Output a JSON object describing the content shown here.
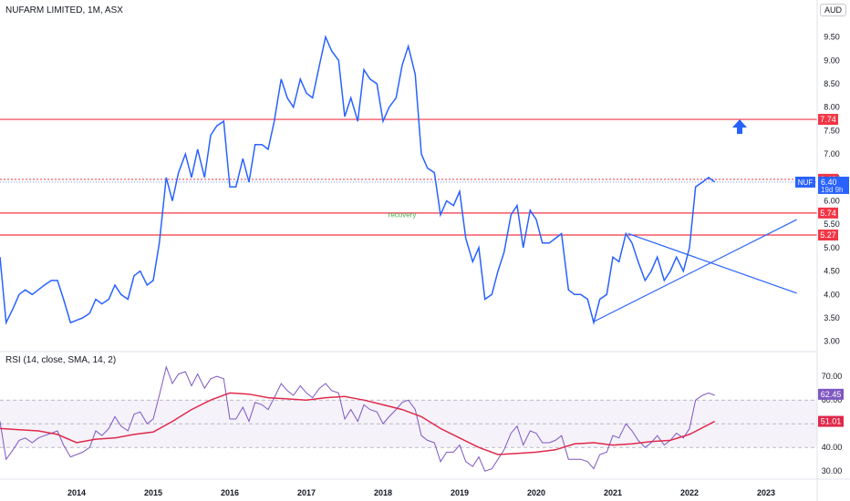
{
  "header": {
    "title": "NUFARM LIMITED, 1M, ASX",
    "currency": "AUD"
  },
  "annotation": {
    "recovery_text": "recovery"
  },
  "colors": {
    "price_line": "#2962ff",
    "level_line": "#f23645",
    "rsi_line": "#7e57c2",
    "rsi_ma": "#e0294a",
    "arrow": "#2962ff",
    "recovery_text": "#4caf50"
  },
  "chart_data": [
    {
      "type": "line",
      "title": "NUFARM LIMITED, 1M, ASX",
      "x_ticks": [
        "2014",
        "2015",
        "2016",
        "2017",
        "2018",
        "2019",
        "2020",
        "2021",
        "2022",
        "2023"
      ],
      "y_ticks": [
        "3.00",
        "3.50",
        "4.00",
        "4.50",
        "5.00",
        "5.50",
        "6.00",
        "6.50",
        "7.00",
        "7.50",
        "8.00",
        "8.50",
        "9.00",
        "9.50"
      ],
      "ylim": [
        2.8,
        9.9
      ],
      "xlim": [
        2013.0,
        2023.4
      ],
      "series": [
        {
          "name": "NUF",
          "x": [
            2013.0,
            2013.08,
            2013.17,
            2013.25,
            2013.33,
            2013.42,
            2013.5,
            2013.58,
            2013.67,
            2013.75,
            2013.83,
            2013.92,
            2014.0,
            2014.08,
            2014.17,
            2014.25,
            2014.33,
            2014.42,
            2014.5,
            2014.58,
            2014.67,
            2014.75,
            2014.83,
            2014.92,
            2015.0,
            2015.08,
            2015.17,
            2015.25,
            2015.33,
            2015.42,
            2015.5,
            2015.58,
            2015.67,
            2015.75,
            2015.83,
            2015.92,
            2016.0,
            2016.08,
            2016.17,
            2016.25,
            2016.33,
            2016.42,
            2016.5,
            2016.58,
            2016.67,
            2016.75,
            2016.83,
            2016.92,
            2017.0,
            2017.08,
            2017.17,
            2017.25,
            2017.33,
            2017.42,
            2017.5,
            2017.58,
            2017.67,
            2017.75,
            2017.83,
            2017.92,
            2018.0,
            2018.08,
            2018.17,
            2018.25,
            2018.33,
            2018.42,
            2018.5,
            2018.58,
            2018.67,
            2018.75,
            2018.83,
            2018.92,
            2019.0,
            2019.08,
            2019.17,
            2019.25,
            2019.33,
            2019.42,
            2019.5,
            2019.58,
            2019.67,
            2019.75,
            2019.83,
            2019.92,
            2020.0,
            2020.08,
            2020.17,
            2020.25,
            2020.33,
            2020.42,
            2020.5,
            2020.58,
            2020.67,
            2020.75,
            2020.83,
            2020.92,
            2021.0,
            2021.08,
            2021.17,
            2021.25,
            2021.33,
            2021.42,
            2021.5,
            2021.58,
            2021.67,
            2021.75,
            2021.83,
            2021.92,
            2022.0,
            2022.08,
            2022.17,
            2022.25,
            2022.33
          ],
          "values": [
            4.8,
            3.4,
            3.7,
            4.0,
            4.1,
            4.0,
            4.1,
            4.2,
            4.3,
            4.3,
            3.9,
            3.4,
            3.45,
            3.5,
            3.6,
            3.9,
            3.8,
            3.9,
            4.2,
            4.0,
            3.9,
            4.4,
            4.5,
            4.2,
            4.3,
            5.1,
            6.5,
            6.0,
            6.6,
            7.0,
            6.5,
            7.1,
            6.5,
            7.4,
            7.6,
            7.7,
            6.3,
            6.3,
            6.9,
            6.4,
            7.2,
            7.2,
            7.1,
            7.7,
            8.6,
            8.2,
            8.0,
            8.6,
            8.3,
            8.2,
            8.9,
            9.5,
            9.2,
            9.0,
            7.8,
            8.2,
            7.7,
            8.8,
            8.6,
            8.5,
            7.7,
            8.0,
            8.2,
            8.9,
            9.3,
            8.7,
            7.0,
            6.7,
            6.6,
            5.7,
            6.0,
            5.9,
            6.2,
            5.2,
            4.7,
            5.0,
            3.9,
            4.0,
            4.5,
            4.9,
            5.7,
            5.9,
            5.0,
            5.8,
            5.6,
            5.1,
            5.1,
            5.2,
            5.3,
            4.1,
            4.0,
            4.0,
            3.9,
            3.4,
            3.9,
            4.0,
            4.8,
            4.7,
            5.3,
            5.1,
            4.7,
            4.3,
            4.5,
            4.8,
            4.3,
            4.5,
            4.8,
            4.5,
            5.0,
            6.3,
            6.4,
            6.5,
            6.4
          ]
        }
      ],
      "levels": [
        {
          "label": "7.74",
          "value": 7.74
        },
        {
          "label": "6.46",
          "value": 6.46
        },
        {
          "label": "5.74",
          "value": 5.74
        },
        {
          "label": "5.27",
          "value": 5.27
        }
      ],
      "trendlines": [
        {
          "x": [
            2020.75,
            2023.4
          ],
          "values": [
            3.42,
            5.6
          ]
        },
        {
          "x": [
            2021.2,
            2023.4
          ],
          "values": [
            5.3,
            4.03
          ]
        }
      ],
      "price_label": {
        "name": "NUF",
        "value": "6.40",
        "countdown": "19d 9h"
      },
      "annotation_point": {
        "x": 2018.25,
        "value": 5.65
      }
    },
    {
      "type": "line",
      "title": "RSI (14, close, SMA, 14, 2)",
      "y_ticks": [
        "30.00",
        "40.00",
        "50.00",
        "60.00",
        "70.00"
      ],
      "ylim": [
        27,
        77
      ],
      "band": [
        40,
        60
      ],
      "midline": 50,
      "series": [
        {
          "name": "RSI",
          "x": [
            2013.0,
            2013.08,
            2013.17,
            2013.25,
            2013.33,
            2013.42,
            2013.5,
            2013.58,
            2013.67,
            2013.75,
            2013.83,
            2013.92,
            2014.0,
            2014.08,
            2014.17,
            2014.25,
            2014.33,
            2014.42,
            2014.5,
            2014.58,
            2014.67,
            2014.75,
            2014.83,
            2014.92,
            2015.0,
            2015.08,
            2015.17,
            2015.25,
            2015.33,
            2015.42,
            2015.5,
            2015.58,
            2015.67,
            2015.75,
            2015.83,
            2015.92,
            2016.0,
            2016.08,
            2016.17,
            2016.25,
            2016.33,
            2016.42,
            2016.5,
            2016.58,
            2016.67,
            2016.75,
            2016.83,
            2016.92,
            2017.0,
            2017.08,
            2017.17,
            2017.25,
            2017.33,
            2017.42,
            2017.5,
            2017.58,
            2017.67,
            2017.75,
            2017.83,
            2017.92,
            2018.0,
            2018.08,
            2018.17,
            2018.25,
            2018.33,
            2018.42,
            2018.5,
            2018.58,
            2018.67,
            2018.75,
            2018.83,
            2018.92,
            2019.0,
            2019.08,
            2019.17,
            2019.25,
            2019.33,
            2019.42,
            2019.5,
            2019.58,
            2019.67,
            2019.75,
            2019.83,
            2019.92,
            2020.0,
            2020.08,
            2020.17,
            2020.25,
            2020.33,
            2020.42,
            2020.5,
            2020.58,
            2020.67,
            2020.75,
            2020.83,
            2020.92,
            2021.0,
            2021.08,
            2021.17,
            2021.25,
            2021.33,
            2021.42,
            2021.5,
            2021.58,
            2021.67,
            2021.75,
            2021.83,
            2021.92,
            2022.0,
            2022.08,
            2022.17,
            2022.25,
            2022.33
          ],
          "values": [
            51,
            35,
            39,
            43,
            44,
            42,
            44,
            45,
            46,
            47,
            41,
            36,
            37,
            38,
            40,
            47,
            45,
            48,
            53,
            49,
            47,
            54,
            55,
            50,
            52,
            62,
            74,
            67,
            71,
            72,
            66,
            71,
            65,
            69,
            70,
            69,
            52,
            52,
            57,
            51,
            59,
            58,
            56,
            61,
            67,
            64,
            62,
            66,
            63,
            61,
            65,
            67,
            64,
            63,
            52,
            56,
            51,
            58,
            56,
            55,
            50,
            53,
            56,
            59,
            60,
            56,
            45,
            43,
            42,
            34,
            38,
            38,
            41,
            34,
            32,
            36,
            30,
            31,
            35,
            39,
            46,
            49,
            41,
            47,
            46,
            42,
            42,
            43,
            45,
            35,
            35,
            35,
            34,
            31,
            37,
            38,
            45,
            44,
            50,
            47,
            43,
            40,
            42,
            45,
            41,
            43,
            46,
            44,
            48,
            60,
            62,
            63,
            62
          ]
        },
        {
          "name": "RSI MA",
          "x": [
            2013.0,
            2013.25,
            2013.5,
            2013.75,
            2014.0,
            2014.25,
            2014.5,
            2014.75,
            2015.0,
            2015.25,
            2015.5,
            2015.75,
            2016.0,
            2016.25,
            2016.5,
            2016.75,
            2017.0,
            2017.25,
            2017.5,
            2017.75,
            2018.0,
            2018.25,
            2018.5,
            2018.75,
            2019.0,
            2019.25,
            2019.5,
            2019.75,
            2020.0,
            2020.25,
            2020.5,
            2020.75,
            2021.0,
            2021.25,
            2021.5,
            2021.75,
            2022.0,
            2022.33
          ],
          "values": [
            48,
            47.5,
            47,
            45.5,
            42,
            43.5,
            44,
            45.5,
            46.5,
            51,
            56,
            60,
            63,
            62.5,
            61,
            60.5,
            60,
            61,
            61.5,
            60,
            58,
            56,
            53,
            48,
            44,
            40,
            37,
            37.5,
            38,
            39,
            41.5,
            42,
            41,
            41.5,
            42.5,
            43,
            45.5,
            51.01
          ]
        }
      ],
      "value_labels": [
        {
          "label": "62.45",
          "value": 62.45
        },
        {
          "label": "51.01",
          "value": 51.01
        }
      ]
    }
  ]
}
